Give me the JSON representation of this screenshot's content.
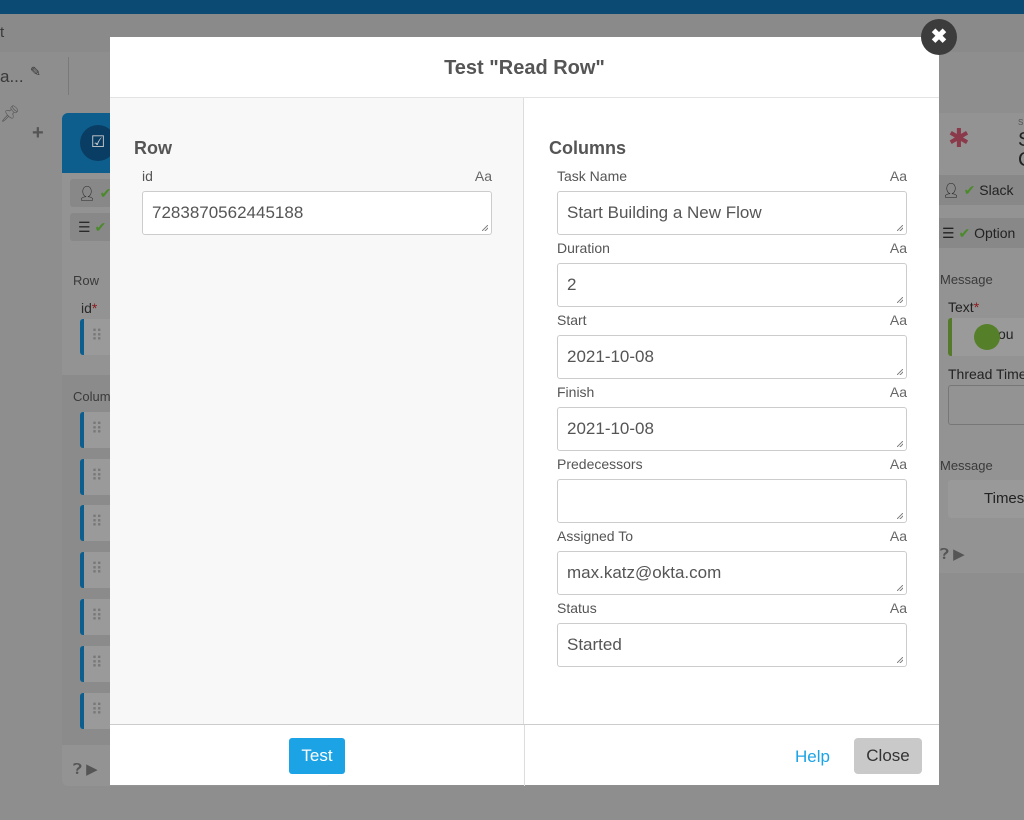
{
  "background": {
    "top_left_text": "t",
    "flow_name": "a...",
    "left_card": {
      "row_label": "Row",
      "id_label": "id",
      "required": "*",
      "columns_label": "Colum"
    },
    "right_card": {
      "title_s": "S",
      "title_c": "C",
      "small_label": "S",
      "auth_row": "Slack",
      "options_row": "Option",
      "message_label": "Message",
      "text_label": "Text",
      "required": "*",
      "text_value": "ou",
      "thread_label": "Thread Time",
      "message_label2": "Message",
      "timestamp_value": "Timest"
    }
  },
  "modal": {
    "title": "Test \"Read Row\"",
    "left": {
      "section": "Row",
      "fields": [
        {
          "label": "id",
          "type_icon": "Aa",
          "value": "7283870562445188"
        }
      ]
    },
    "right": {
      "section": "Columns",
      "fields": [
        {
          "label": "Task Name",
          "type_icon": "Aa",
          "value": "Start Building a New Flow"
        },
        {
          "label": "Duration",
          "type_icon": "Aa",
          "value": "2"
        },
        {
          "label": "Start",
          "type_icon": "Aa",
          "value": "2021-10-08"
        },
        {
          "label": "Finish",
          "type_icon": "Aa",
          "value": "2021-10-08"
        },
        {
          "label": "Predecessors",
          "type_icon": "Aa",
          "value": ""
        },
        {
          "label": "Assigned To",
          "type_icon": "Aa",
          "value": "max.katz@okta.com"
        },
        {
          "label": "Status",
          "type_icon": "Aa",
          "value": "Started"
        }
      ]
    },
    "footer": {
      "test": "Test",
      "help": "Help",
      "close": "Close"
    },
    "close_icon": "✖"
  },
  "colors": {
    "accent": "#1ca3e6",
    "header_blue": "#0b4a73"
  }
}
